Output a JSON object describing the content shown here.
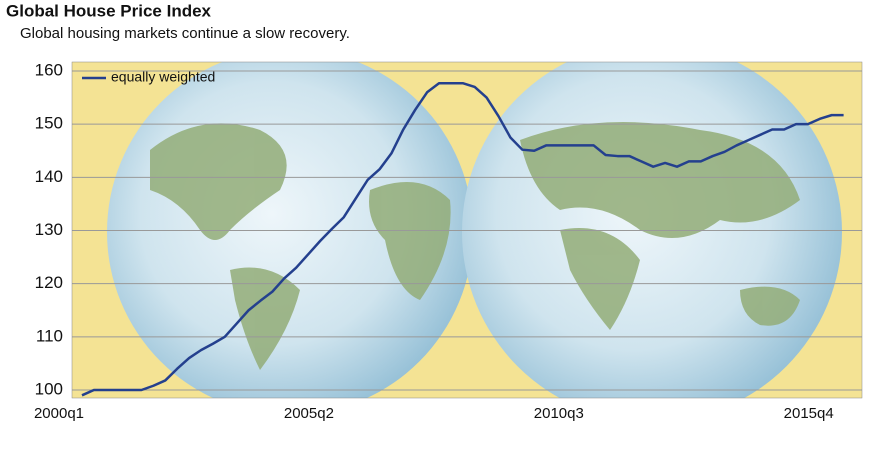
{
  "chart_data": {
    "type": "line",
    "title": "Global House Price Index",
    "subtitle": "Global housing markets continue a slow recovery.",
    "categories": [
      "2000q1",
      null,
      null,
      null,
      null,
      null,
      null,
      null,
      null,
      null,
      null,
      null,
      null,
      null,
      null,
      null,
      null,
      null,
      null,
      null,
      null,
      "2005q2",
      null,
      null,
      null,
      null,
      null,
      null,
      null,
      null,
      null,
      null,
      null,
      null,
      null,
      null,
      null,
      null,
      null,
      null,
      null,
      null,
      "2010q3",
      null,
      null,
      null,
      null,
      null,
      null,
      null,
      null,
      null,
      null,
      null,
      null,
      null,
      null,
      null,
      null,
      null,
      null,
      null,
      null,
      "2015q4",
      null
    ],
    "series": [
      {
        "name": "equally weighted",
        "color": "#24408e",
        "values": [
          99,
          100,
          100,
          100,
          100,
          100,
          100.8,
          101.8,
          104,
          106,
          107.5,
          108.7,
          110,
          112.5,
          115,
          116.8,
          118.5,
          121,
          123,
          125.5,
          128,
          130.3,
          132.5,
          136,
          139.5,
          141.5,
          144.5,
          149,
          152.7,
          156,
          157.7,
          157.7,
          157.7,
          157,
          155,
          151.5,
          147.5,
          145.2,
          145,
          146,
          146,
          146,
          146,
          146,
          144.2,
          144,
          144,
          143,
          142,
          142.7,
          142,
          143,
          143,
          144,
          144.8,
          146,
          147,
          148,
          149,
          149,
          150,
          150,
          151,
          151.7,
          151.7
        ]
      }
    ],
    "ylim": [
      100,
      160
    ],
    "yticks": [
      100,
      110,
      120,
      130,
      140,
      150,
      160
    ],
    "grid": true,
    "legend": "top-left"
  }
}
